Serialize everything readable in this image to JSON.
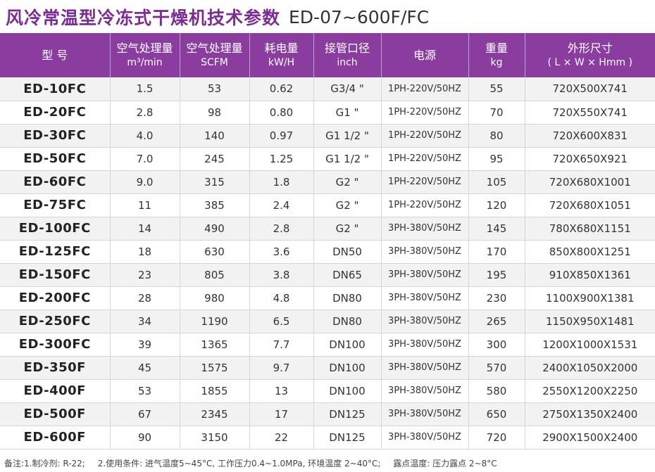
{
  "title": {
    "cn": "风冷常温型冷冻式干燥机技术参数",
    "model_range": "ED-07~600F/FC"
  },
  "table": {
    "headers": [
      {
        "main": "型 号",
        "sub": ""
      },
      {
        "main": "空气处理量",
        "sub": "m³/min"
      },
      {
        "main": "空气处理量",
        "sub": "SCFM"
      },
      {
        "main": "耗电量",
        "sub": "kW/H"
      },
      {
        "main": "接管口径",
        "sub": "inch"
      },
      {
        "main": "电源",
        "sub": ""
      },
      {
        "main": "重量",
        "sub": "kg"
      },
      {
        "main": "外形尺寸",
        "sub": "( L × W × Hmm )"
      }
    ],
    "rows": [
      [
        "ED-10FC",
        "1.5",
        "53",
        "0.62",
        "G3/4 \"",
        "1PH-220V/50HZ",
        "55",
        "720X500X741"
      ],
      [
        "ED-20FC",
        "2.8",
        "98",
        "0.80",
        "G1 \"",
        "1PH-220V/50HZ",
        "70",
        "720X550X741"
      ],
      [
        "ED-30FC",
        "4.0",
        "140",
        "0.97",
        "G1 1/2 \"",
        "1PH-220V/50HZ",
        "80",
        "720X600X831"
      ],
      [
        "ED-50FC",
        "7.0",
        "245",
        "1.25",
        "G1 1/2 \"",
        "1PH-220V/50HZ",
        "95",
        "720X650X921"
      ],
      [
        "ED-60FC",
        "9.0",
        "315",
        "1.8",
        "G2 \"",
        "1PH-220V/50HZ",
        "105",
        "720X680X1001"
      ],
      [
        "ED-75FC",
        "11",
        "385",
        "2.4",
        "G2 \"",
        "1PH-220V/50HZ",
        "120",
        "720X680X1051"
      ],
      [
        "ED-100FC",
        "14",
        "490",
        "2.8",
        "G2 \"",
        "3PH-380V/50HZ",
        "145",
        "780X680X1151"
      ],
      [
        "ED-125FC",
        "18",
        "630",
        "3.6",
        "DN50",
        "3PH-380V/50HZ",
        "170",
        "850X800X1251"
      ],
      [
        "ED-150FC",
        "23",
        "805",
        "3.8",
        "DN65",
        "3PH-380V/50HZ",
        "195",
        "910X850X1361"
      ],
      [
        "ED-200FC",
        "28",
        "980",
        "4.8",
        "DN80",
        "3PH-380V/50HZ",
        "230",
        "1100X900X1381"
      ],
      [
        "ED-250FC",
        "34",
        "1190",
        "6.5",
        "DN80",
        "3PH-380V/50HZ",
        "265",
        "1150X950X1481"
      ],
      [
        "ED-300FC",
        "39",
        "1365",
        "7.7",
        "DN100",
        "3PH-380V/50HZ",
        "300",
        "1200X1000X1531"
      ],
      [
        "ED-350F",
        "45",
        "1575",
        "9.7",
        "DN100",
        "3PH-380V/50HZ",
        "570",
        "2400X1050X2000"
      ],
      [
        "ED-400F",
        "53",
        "1855",
        "13",
        "DN100",
        "3PH-380V/50HZ",
        "580",
        "2550X1200X2250"
      ],
      [
        "ED-500F",
        "67",
        "2345",
        "17",
        "DN125",
        "3PH-380V/50HZ",
        "650",
        "2750X1350X2400"
      ],
      [
        "ED-600F",
        "90",
        "3150",
        "22",
        "DN125",
        "3PH-380V/50HZ",
        "720",
        "2900X1500X2400"
      ]
    ]
  },
  "notes": [
    "备注:1.制冷剂: R-22;",
    "2.使用条件: 进气温度5~45°C, 工作压力0.4~1.0MPa, 环境温度 2~40°C;",
    "露点温度: 压力露点 2~8°C"
  ],
  "colors": {
    "header_bg": "#8a3c9f",
    "title": "#7b2d91",
    "row_alt": "#f2f2f2"
  }
}
